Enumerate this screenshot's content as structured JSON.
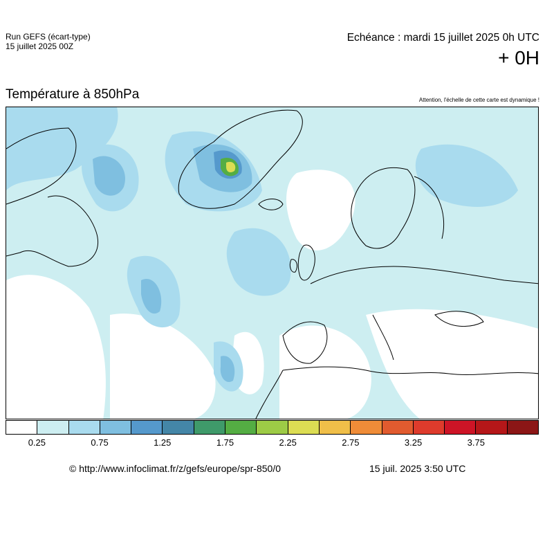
{
  "header": {
    "run_label": "Run GEFS (écart-type)",
    "run_date": "15 juillet 2025 00Z",
    "echeance": "Echéance : mardi 15 juillet 2025 0h UTC",
    "lead": "+ 0H",
    "parameter": "Température à 850hPa",
    "warning": "Attention, l'échelle de cette carte est dynamique !"
  },
  "legend": {
    "colors": [
      "#ffffff",
      "#cdeef1",
      "#a9dbee",
      "#7fbfe0",
      "#5599cc",
      "#4486a7",
      "#3f9a6a",
      "#54ad43",
      "#9dcb46",
      "#dcdd53",
      "#f0bf49",
      "#ef8c38",
      "#e15b2f",
      "#de3b2c",
      "#cd1426",
      "#b51719",
      "#8c1616"
    ],
    "tick_labels": [
      "0.25",
      "0.75",
      "1.25",
      "1.75",
      "2.25",
      "2.75",
      "3.25",
      "3.75"
    ]
  },
  "footer": {
    "url": "© http://www.infoclimat.fr/z/gefs/europe/spr-850/0",
    "timestamp": "15 juil. 2025  3:50 UTC"
  }
}
